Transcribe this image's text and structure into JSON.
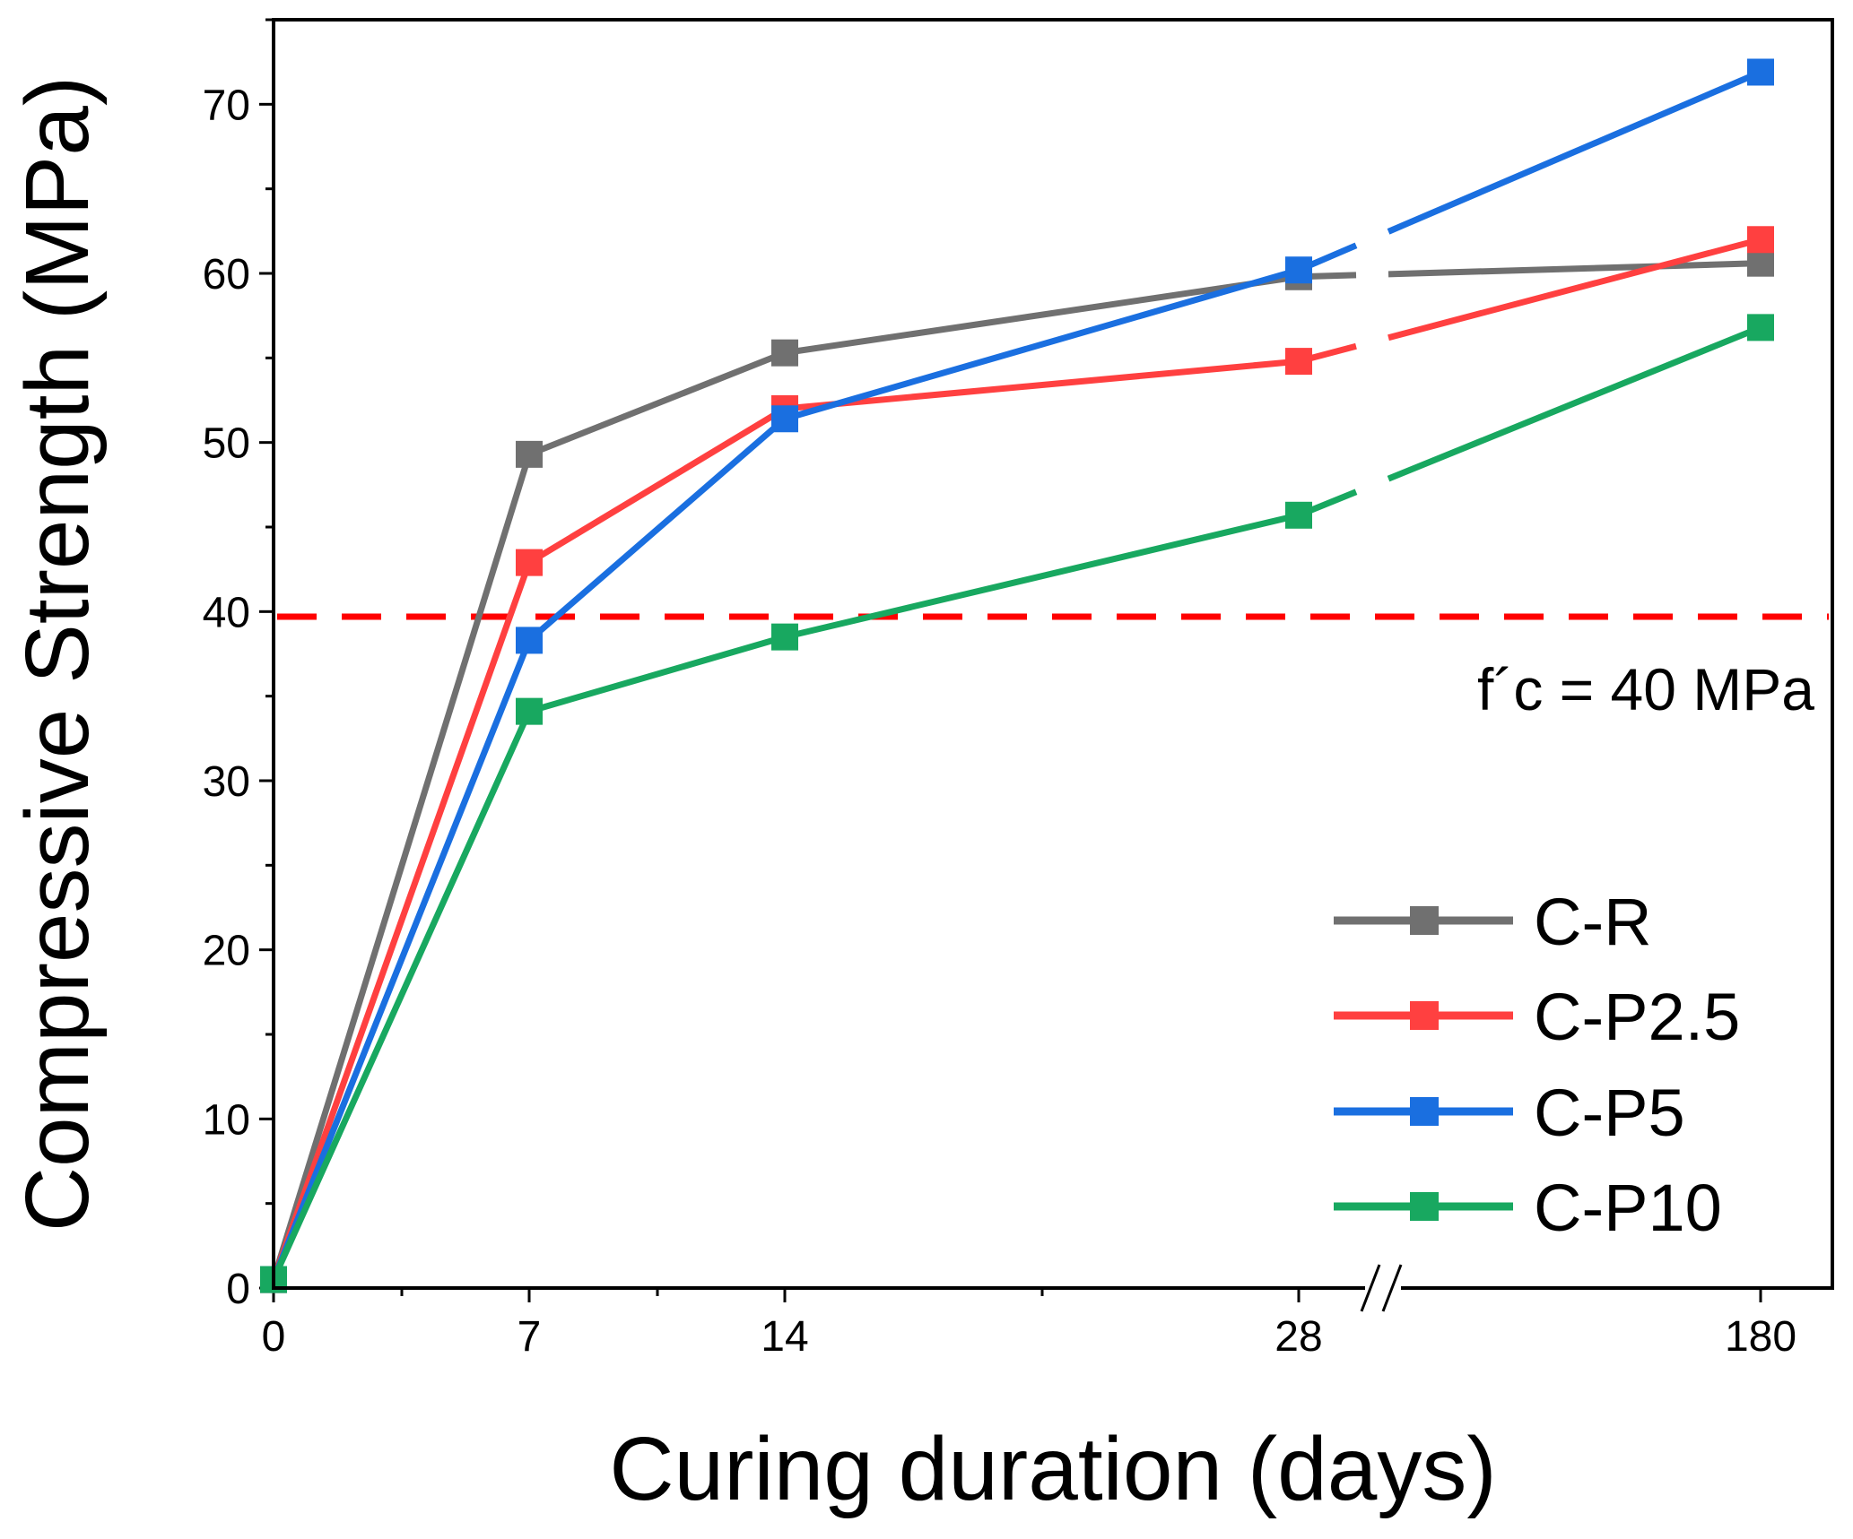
{
  "chart_data": {
    "type": "line",
    "title": "",
    "xlabel": "Curing duration (days)",
    "ylabel": "Compressive Strength (MPa)",
    "ylim": [
      0,
      75
    ],
    "x_categories": [
      "0",
      "7",
      "14",
      "28",
      "180"
    ],
    "x_break": "between 28 and 180",
    "yticks": [
      0,
      10,
      20,
      30,
      40,
      50,
      60,
      70
    ],
    "series": [
      {
        "name": "C-R",
        "color": "#707070",
        "values": [
          0.5,
          49.3,
          55.3,
          59.8,
          60.6
        ]
      },
      {
        "name": "C-P2.5",
        "color": "#ff4040",
        "values": [
          0.5,
          42.9,
          52.0,
          54.8,
          62.0
        ]
      },
      {
        "name": "C-P5",
        "color": "#1a6fe0",
        "values": [
          0.5,
          38.3,
          51.4,
          60.2,
          71.9
        ]
      },
      {
        "name": "C-P10",
        "color": "#18a860",
        "values": [
          0.5,
          34.1,
          38.5,
          45.7,
          56.8
        ]
      }
    ],
    "reference_line": {
      "value": 39.7,
      "color": "#ff0000",
      "label": "f´c = 40 MPa"
    },
    "legend_position": "bottom-right"
  }
}
